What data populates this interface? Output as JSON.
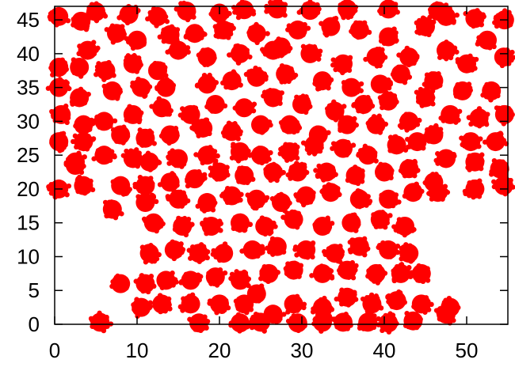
{
  "chart_data": {
    "type": "scatter",
    "title": "",
    "xlabel": "",
    "ylabel": "",
    "xlim": [
      0,
      55
    ],
    "ylim": [
      0,
      47
    ],
    "grid": false,
    "legend": "none",
    "x_ticks": [
      "0",
      "10",
      "20",
      "30",
      "40",
      "50"
    ],
    "y_ticks": [
      "0",
      "5",
      "10",
      "15",
      "20",
      "25",
      "30",
      "35",
      "40",
      "45"
    ],
    "series": [
      {
        "color": "#ff0000",
        "points": [
          [
            0.5,
            45.5
          ],
          [
            3.2,
            44.8
          ],
          [
            5,
            46.2
          ],
          [
            9,
            45.8
          ],
          [
            12.5,
            45.5
          ],
          [
            16,
            46.3
          ],
          [
            20,
            46
          ],
          [
            23,
            46.5
          ],
          [
            27,
            46.6
          ],
          [
            31,
            46.4
          ],
          [
            35.5,
            46.6
          ],
          [
            40.5,
            46.6
          ],
          [
            46.5,
            46.3
          ],
          [
            51,
            45.2
          ],
          [
            54.6,
            45
          ],
          [
            0.5,
            38
          ],
          [
            4,
            40.5
          ],
          [
            7.5,
            43
          ],
          [
            10,
            42
          ],
          [
            14,
            42.8
          ],
          [
            17,
            43
          ],
          [
            20.5,
            43.5
          ],
          [
            24.5,
            43
          ],
          [
            27.5,
            41
          ],
          [
            29.5,
            43.5
          ],
          [
            33.5,
            44
          ],
          [
            37,
            43.5
          ],
          [
            40.5,
            42.5
          ],
          [
            45,
            44
          ],
          [
            47.5,
            45.5
          ],
          [
            52.5,
            42
          ],
          [
            3,
            38
          ],
          [
            6.2,
            37.5
          ],
          [
            9.5,
            38.5
          ],
          [
            12.5,
            37.5
          ],
          [
            15,
            40.5
          ],
          [
            18.5,
            39.5
          ],
          [
            22.5,
            40
          ],
          [
            26.5,
            40.5
          ],
          [
            31,
            40
          ],
          [
            35,
            38.5
          ],
          [
            39,
            39.5
          ],
          [
            43,
            39.5
          ],
          [
            47.5,
            40.5
          ],
          [
            50,
            38.5
          ],
          [
            54.5,
            39.5
          ],
          [
            0.5,
            35
          ],
          [
            3,
            33.5
          ],
          [
            7,
            34.5
          ],
          [
            10.5,
            35
          ],
          [
            13.5,
            35
          ],
          [
            18.5,
            35.5
          ],
          [
            21.5,
            36
          ],
          [
            24.5,
            36.5
          ],
          [
            28,
            37
          ],
          [
            32.5,
            36
          ],
          [
            36,
            35
          ],
          [
            39.5,
            35.5
          ],
          [
            42,
            37
          ],
          [
            46,
            36
          ],
          [
            49.5,
            34.5
          ],
          [
            53,
            34.5
          ],
          [
            0.8,
            31
          ],
          [
            3.5,
            29.5
          ],
          [
            6,
            30
          ],
          [
            9.5,
            31
          ],
          [
            13,
            32
          ],
          [
            16.5,
            31
          ],
          [
            19.5,
            32.5
          ],
          [
            23,
            32
          ],
          [
            26.5,
            33.5
          ],
          [
            30,
            32.5
          ],
          [
            34,
            31.5
          ],
          [
            37.5,
            32.5
          ],
          [
            40.5,
            33
          ],
          [
            45,
            33.5
          ],
          [
            48,
            31
          ],
          [
            51.5,
            30.5
          ],
          [
            54.6,
            31
          ],
          [
            0.5,
            27
          ],
          [
            3.5,
            27
          ],
          [
            8,
            28
          ],
          [
            11,
            27.5
          ],
          [
            14,
            28
          ],
          [
            18,
            29
          ],
          [
            21.5,
            28.5
          ],
          [
            25,
            29.5
          ],
          [
            28.5,
            29.5
          ],
          [
            32,
            28
          ],
          [
            35.5,
            29.5
          ],
          [
            39,
            29.5
          ],
          [
            43,
            30
          ],
          [
            46,
            28
          ],
          [
            50.5,
            27
          ],
          [
            53.5,
            27
          ],
          [
            2.5,
            24
          ],
          [
            6,
            25
          ],
          [
            9.5,
            24.5
          ],
          [
            11.5,
            24
          ],
          [
            15,
            24.5
          ],
          [
            18.5,
            25
          ],
          [
            22.5,
            25.5
          ],
          [
            25,
            25
          ],
          [
            28.5,
            25.5
          ],
          [
            31.5,
            26.5
          ],
          [
            35,
            26
          ],
          [
            38,
            25
          ],
          [
            41.5,
            26.5
          ],
          [
            44,
            27
          ],
          [
            47.5,
            24.5
          ],
          [
            51,
            24
          ],
          [
            54,
            23
          ],
          [
            0.5,
            20
          ],
          [
            2.5,
            23.5
          ],
          [
            3.5,
            20.5
          ],
          [
            8,
            20.5
          ],
          [
            11,
            20.5
          ],
          [
            14,
            21
          ],
          [
            17,
            21.5
          ],
          [
            20,
            22.5
          ],
          [
            23,
            22
          ],
          [
            26.5,
            22.5
          ],
          [
            29.5,
            22.5
          ],
          [
            33,
            22.5
          ],
          [
            36.5,
            22
          ],
          [
            40,
            22.5
          ],
          [
            43,
            23
          ],
          [
            46,
            21
          ],
          [
            51,
            20
          ],
          [
            54.5,
            20.5
          ],
          [
            7,
            17
          ],
          [
            11,
            18
          ],
          [
            15,
            18.5
          ],
          [
            18.5,
            18
          ],
          [
            21.5,
            19
          ],
          [
            24.5,
            18.5
          ],
          [
            27.5,
            18
          ],
          [
            30.5,
            19
          ],
          [
            33.5,
            19.5
          ],
          [
            37,
            18.5
          ],
          [
            40.5,
            18.5
          ],
          [
            43.5,
            19.5
          ],
          [
            46.5,
            19.5
          ],
          [
            12,
            15
          ],
          [
            15.5,
            14.5
          ],
          [
            19,
            14.5
          ],
          [
            22.5,
            15
          ],
          [
            25.5,
            14.5
          ],
          [
            29,
            15.5
          ],
          [
            32.5,
            14.5
          ],
          [
            36,
            15
          ],
          [
            39.5,
            15.5
          ],
          [
            42.5,
            14.5
          ],
          [
            11.5,
            10.5
          ],
          [
            14.5,
            11
          ],
          [
            17.5,
            10.5
          ],
          [
            20.5,
            10.5
          ],
          [
            24,
            11
          ],
          [
            27,
            11.5
          ],
          [
            30.5,
            11
          ],
          [
            34,
            10.5
          ],
          [
            37,
            11.5
          ],
          [
            40.5,
            11
          ],
          [
            43,
            10.5
          ],
          [
            8,
            6
          ],
          [
            11,
            6
          ],
          [
            13.5,
            6.5
          ],
          [
            16.5,
            6.5
          ],
          [
            19.5,
            7
          ],
          [
            22.5,
            6.5
          ],
          [
            26,
            7.5
          ],
          [
            29,
            8
          ],
          [
            32.5,
            7.5
          ],
          [
            35.5,
            8
          ],
          [
            39,
            7.5
          ],
          [
            42,
            7.5
          ],
          [
            44.5,
            7.5
          ],
          [
            10.5,
            2.5
          ],
          [
            13,
            3
          ],
          [
            16.5,
            3
          ],
          [
            20,
            3
          ],
          [
            23,
            3
          ],
          [
            24.5,
            4.5
          ],
          [
            26.5,
            1.5
          ],
          [
            29,
            3
          ],
          [
            32.5,
            2.5
          ],
          [
            35.5,
            4
          ],
          [
            38.5,
            3
          ],
          [
            41.5,
            3.5
          ],
          [
            44.5,
            3
          ],
          [
            48,
            2.5
          ],
          [
            5.5,
            0.3
          ],
          [
            17.5,
            0.2
          ],
          [
            22.5,
            0.2
          ],
          [
            25,
            0.3
          ],
          [
            29.5,
            0.2
          ],
          [
            32.5,
            0.3
          ],
          [
            35,
            0.3
          ],
          [
            38,
            0.3
          ],
          [
            40.5,
            0.2
          ],
          [
            43.5,
            0.5
          ],
          [
            47.5,
            1.5
          ]
        ]
      }
    ]
  }
}
